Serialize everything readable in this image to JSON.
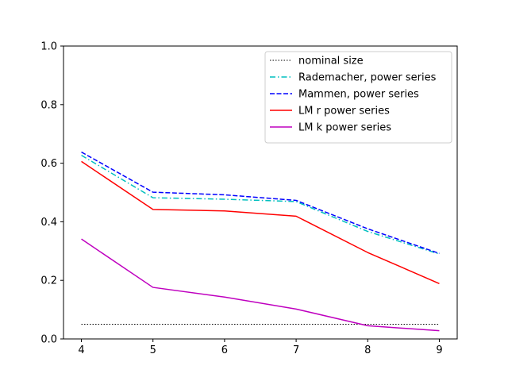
{
  "chart_data": {
    "type": "line",
    "title": "",
    "xlabel": "",
    "ylabel": "",
    "x": [
      4,
      5,
      6,
      7,
      8,
      9
    ],
    "xlim": [
      3.75,
      9.25
    ],
    "ylim": [
      0.0,
      1.0
    ],
    "xticks": [
      "4",
      "5",
      "6",
      "7",
      "8",
      "9"
    ],
    "yticks": [
      "0.0",
      "0.2",
      "0.4",
      "0.6",
      "0.8",
      "1.0"
    ],
    "grid": false,
    "legend_position": "top-right",
    "series": [
      {
        "name": "nominal size",
        "values": [
          0.05,
          0.05,
          0.05,
          0.05,
          0.05,
          0.05
        ],
        "color": "#000000",
        "style": "dotted"
      },
      {
        "name": "Rademacher, power series",
        "values": [
          0.627,
          0.482,
          0.477,
          0.469,
          0.367,
          0.29
        ],
        "color": "#00bfbf",
        "style": "dashdot"
      },
      {
        "name": "Mammen, power series",
        "values": [
          0.638,
          0.501,
          0.492,
          0.473,
          0.376,
          0.292
        ],
        "color": "#0000ff",
        "style": "dashed"
      },
      {
        "name": "LM r power series",
        "values": [
          0.606,
          0.442,
          0.437,
          0.419,
          0.295,
          0.189
        ],
        "color": "#ff0000",
        "style": "solid"
      },
      {
        "name": "LM k power series",
        "values": [
          0.341,
          0.176,
          0.143,
          0.102,
          0.045,
          0.028
        ],
        "color": "#bf00bf",
        "style": "solid"
      }
    ]
  }
}
